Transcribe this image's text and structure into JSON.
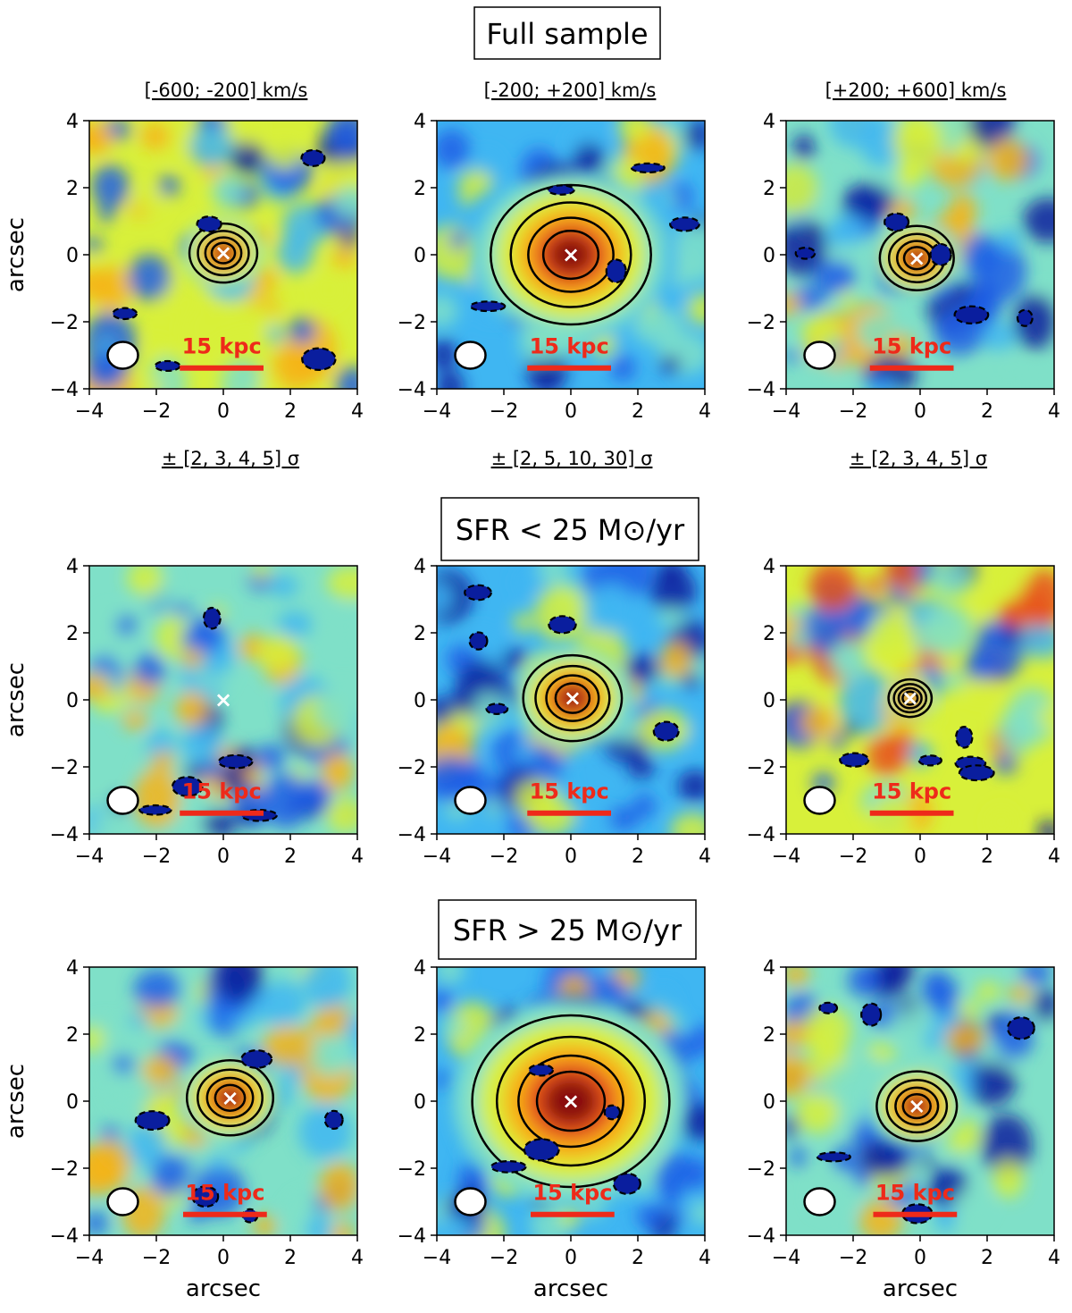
{
  "figure": {
    "colors": {
      "scale_bar": "#ee2a1a",
      "marker": "#ffffff",
      "contour": "#000000",
      "colormap": [
        "#0a1e9e",
        "#1e5fe6",
        "#3fb6f2",
        "#7fe0c8",
        "#d8f03a",
        "#f7b416",
        "#e8521c",
        "#8a0e0a"
      ]
    },
    "x_tick_labels": [
      "−4",
      "−2",
      "0",
      "2",
      "4"
    ],
    "y_tick_labels": [
      "4",
      "2",
      "0",
      "−2",
      "−4"
    ],
    "axis_label": "arcsec",
    "scale_bar_label": "15 kpc",
    "marker_symbol": "×"
  },
  "rows": [
    {
      "title": "Full sample",
      "column_titles": [
        "[-600; -200] km/s",
        "[-200; +200] km/s",
        "[+200; +600] km/s"
      ],
      "sigma_labels": [
        "± [2, 3, 4, 5] σ",
        "± [2, 5, 10, 30] σ",
        "± [2, 3, 4, 5] σ"
      ]
    },
    {
      "title": "SFR < 25 M⊙/yr",
      "column_titles": [],
      "sigma_labels": []
    },
    {
      "title": "SFR > 25 M⊙/yr",
      "column_titles": [],
      "sigma_labels": []
    }
  ],
  "chart_data": {
    "type": "heatmap",
    "description_axes": {
      "xlabel": "arcsec",
      "ylabel": "arcsec",
      "xlim": [
        -4,
        4
      ],
      "ylim": [
        -4,
        4
      ],
      "xticks": [
        -4,
        -2,
        0,
        2,
        4
      ],
      "yticks": [
        -4,
        -2,
        0,
        2,
        4
      ]
    },
    "velocity_channels_kms": [
      [
        -600,
        -200
      ],
      [
        -200,
        200
      ],
      [
        200,
        600
      ]
    ],
    "contour_levels_sigma": [
      [
        2,
        3,
        4,
        5
      ],
      [
        2,
        5,
        10,
        30
      ],
      [
        2,
        3,
        4,
        5
      ]
    ],
    "beam_center_arcsec": [
      -3.0,
      -3.0
    ],
    "panels": [
      {
        "row": 0,
        "col": 0,
        "peak_arcsec": [
          0.0,
          0.05
        ],
        "peak_size": 0.55,
        "level": 0.25,
        "scale_bar_arcsec": [
          -1.3,
          1.2
        ]
      },
      {
        "row": 0,
        "col": 1,
        "peak_arcsec": [
          0.0,
          0.0
        ],
        "peak_size": 1.3,
        "level": -0.1,
        "scale_bar_arcsec": [
          -1.3,
          1.2
        ]
      },
      {
        "row": 0,
        "col": 2,
        "peak_arcsec": [
          -0.1,
          -0.1
        ],
        "peak_size": 0.6,
        "level": 0.1,
        "scale_bar_arcsec": [
          -1.5,
          1.0
        ]
      },
      {
        "row": 1,
        "col": 0,
        "peak_arcsec": [
          0.0,
          0.0
        ],
        "peak_size": 0.0,
        "level": 0.1,
        "scale_bar_arcsec": [
          -1.3,
          1.2
        ]
      },
      {
        "row": 1,
        "col": 1,
        "peak_arcsec": [
          0.05,
          0.05
        ],
        "peak_size": 0.8,
        "level": 0.0,
        "scale_bar_arcsec": [
          -1.3,
          1.2
        ]
      },
      {
        "row": 1,
        "col": 2,
        "peak_arcsec": [
          -0.3,
          0.05
        ],
        "peak_size": 0.35,
        "level": 0.35,
        "scale_bar_arcsec": [
          -1.5,
          1.0
        ]
      },
      {
        "row": 2,
        "col": 0,
        "peak_arcsec": [
          0.2,
          0.1
        ],
        "peak_size": 0.7,
        "level": 0.2,
        "scale_bar_arcsec": [
          -1.2,
          1.3
        ]
      },
      {
        "row": 2,
        "col": 1,
        "peak_arcsec": [
          0.0,
          0.0
        ],
        "peak_size": 1.6,
        "level": -0.05,
        "scale_bar_arcsec": [
          -1.2,
          1.3
        ]
      },
      {
        "row": 2,
        "col": 2,
        "peak_arcsec": [
          -0.1,
          -0.15
        ],
        "peak_size": 0.65,
        "level": 0.05,
        "scale_bar_arcsec": [
          -1.4,
          1.1
        ]
      }
    ]
  }
}
